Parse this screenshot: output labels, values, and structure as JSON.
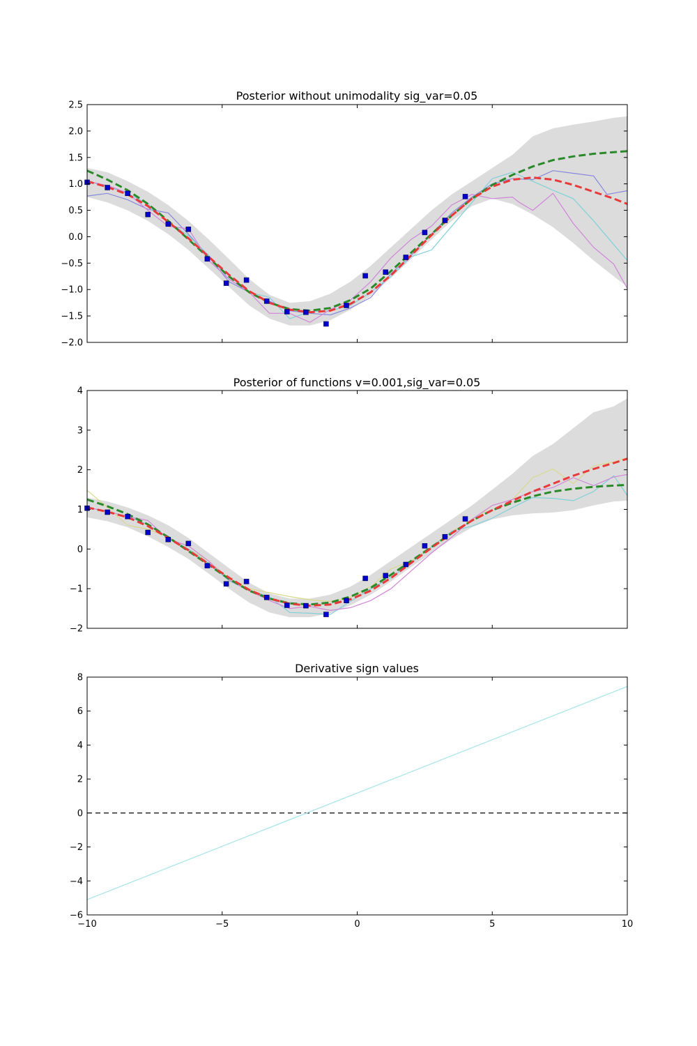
{
  "chart_data": [
    {
      "type": "line",
      "title": "Posterior without unimodality sig_var=0.05",
      "xlabel": "",
      "ylabel": "",
      "xlim": [
        -10,
        10
      ],
      "ylim": [
        -2.0,
        2.5
      ],
      "x_ticks": [
        -10,
        -5,
        0,
        5,
        10
      ],
      "x_tick_labels": [],
      "y_ticks": [
        -2.0,
        -1.5,
        -1.0,
        -0.5,
        0.0,
        0.5,
        1.0,
        1.5,
        2.0,
        2.5
      ],
      "y_tick_labels": [
        "−2.0",
        "−1.5",
        "−1.0",
        "−0.5",
        "0.0",
        "0.5",
        "1.0",
        "1.5",
        "2.0",
        "2.5"
      ],
      "grid": false,
      "band": {
        "color": "#dcdcdc",
        "x": [
          -10,
          -9.25,
          -8.5,
          -7.75,
          -7,
          -6.25,
          -5.5,
          -4.75,
          -4,
          -3.25,
          -2.5,
          -1.75,
          -1,
          -0.25,
          0.5,
          1.25,
          2,
          2.75,
          3.5,
          4.25,
          5,
          5.75,
          6.5,
          7.25,
          8,
          8.75,
          9.5,
          10
        ],
        "upper": [
          1.3,
          1.22,
          1.05,
          0.85,
          0.6,
          0.3,
          -0.05,
          -0.42,
          -0.8,
          -1.1,
          -1.25,
          -1.22,
          -1.08,
          -0.85,
          -0.55,
          -0.2,
          0.15,
          0.5,
          0.8,
          1.05,
          1.3,
          1.55,
          1.9,
          2.05,
          2.12,
          2.18,
          2.25,
          2.28
        ],
        "lower": [
          0.75,
          0.65,
          0.5,
          0.3,
          0.05,
          -0.25,
          -0.6,
          -0.95,
          -1.3,
          -1.55,
          -1.68,
          -1.68,
          -1.58,
          -1.38,
          -1.12,
          -0.78,
          -0.42,
          -0.05,
          0.3,
          0.58,
          0.72,
          0.62,
          0.42,
          0.18,
          -0.12,
          -0.45,
          -0.75,
          -0.95
        ]
      },
      "series": [
        {
          "color": "#8888dd",
          "dashed": false,
          "width": 1.2,
          "x": [
            -10,
            -9.25,
            -8.5,
            -7.75,
            -7,
            -6.25,
            -5.5,
            -4.75,
            -4,
            -3.25,
            -2.5,
            -1.75,
            -1,
            -0.25,
            0.5,
            1.25,
            2,
            2.75,
            3.5,
            4.25,
            5,
            5.75,
            6.5,
            7.25,
            8,
            8.75,
            9.25,
            10
          ],
          "y": [
            0.77,
            0.82,
            0.7,
            0.52,
            0.45,
            0.05,
            -0.38,
            -0.85,
            -1.05,
            -1.22,
            -1.4,
            -1.45,
            -1.48,
            -1.35,
            -1.15,
            -0.7,
            -0.35,
            0.05,
            0.45,
            0.75,
            1.0,
            1.1,
            1.08,
            1.25,
            1.2,
            1.15,
            0.8,
            0.87
          ]
        },
        {
          "color": "#7fd1d8",
          "dashed": false,
          "width": 1.2,
          "x": [
            -10,
            -9.25,
            -8.5,
            -7.75,
            -7,
            -6.25,
            -5.5,
            -4.75,
            -4,
            -3.25,
            -2.5,
            -1.75,
            -1,
            -0.25,
            0.5,
            1.25,
            2,
            2.75,
            3.5,
            4.25,
            5,
            5.75,
            6.5,
            7.25,
            8,
            8.75,
            9.5,
            10
          ],
          "y": [
            1.05,
            0.95,
            0.82,
            0.62,
            0.28,
            0.02,
            -0.35,
            -0.8,
            -1.05,
            -1.15,
            -1.55,
            -1.42,
            -1.4,
            -1.3,
            -1.05,
            -0.75,
            -0.38,
            -0.25,
            0.2,
            0.65,
            1.1,
            1.22,
            1.05,
            0.88,
            0.72,
            0.3,
            -0.15,
            -0.45
          ]
        },
        {
          "color": "#d085d8",
          "dashed": false,
          "width": 1.2,
          "x": [
            -10,
            -9.25,
            -8.5,
            -7.75,
            -7,
            -6.25,
            -5.5,
            -4.75,
            -4,
            -3.25,
            -2.5,
            -1.75,
            -1,
            -0.25,
            0.5,
            1.25,
            2,
            2.75,
            3.5,
            4.25,
            5,
            5.75,
            6,
            6.5,
            7.25,
            8,
            8.75,
            9.5,
            10
          ],
          "y": [
            1.05,
            0.97,
            0.83,
            0.5,
            0.2,
            0.15,
            -0.45,
            -0.8,
            -1.05,
            -1.45,
            -1.45,
            -1.62,
            -1.38,
            -1.2,
            -0.85,
            -0.4,
            -0.05,
            0.2,
            0.6,
            0.8,
            0.72,
            0.75,
            0.65,
            0.5,
            0.82,
            0.25,
            -0.2,
            -0.52,
            -0.98
          ]
        },
        {
          "color": "#2a8a2a",
          "dashed": true,
          "width": 3,
          "x": [
            -10,
            -9.25,
            -8.5,
            -7.75,
            -7,
            -6.25,
            -5.5,
            -4.75,
            -4,
            -3.25,
            -2.5,
            -1.75,
            -1,
            -0.25,
            0.5,
            1.25,
            2,
            2.75,
            3.5,
            4.25,
            5,
            5.75,
            6.5,
            7.25,
            8,
            8.75,
            9.5,
            10
          ],
          "y": [
            1.25,
            1.08,
            0.88,
            0.62,
            0.3,
            -0.05,
            -0.4,
            -0.75,
            -1.05,
            -1.25,
            -1.37,
            -1.4,
            -1.35,
            -1.2,
            -0.98,
            -0.65,
            -0.3,
            0.05,
            0.4,
            0.72,
            0.98,
            1.17,
            1.33,
            1.45,
            1.52,
            1.57,
            1.6,
            1.62
          ]
        },
        {
          "color": "#e83a3a",
          "dashed": true,
          "width": 3,
          "x": [
            -10,
            -9.25,
            -8.5,
            -7.75,
            -7,
            -6.25,
            -5.5,
            -4.75,
            -4,
            -3.25,
            -2.5,
            -1.75,
            -1,
            -0.25,
            0.5,
            1.25,
            2,
            2.75,
            3.5,
            4.25,
            5,
            5.75,
            6.5,
            7.25,
            8,
            8.75,
            9.5,
            10
          ],
          "y": [
            1.05,
            0.94,
            0.8,
            0.58,
            0.28,
            -0.03,
            -0.38,
            -0.72,
            -1.03,
            -1.25,
            -1.38,
            -1.43,
            -1.4,
            -1.27,
            -1.05,
            -0.73,
            -0.35,
            0.03,
            0.4,
            0.72,
            0.95,
            1.08,
            1.12,
            1.08,
            0.98,
            0.85,
            0.72,
            0.62
          ]
        }
      ],
      "scatter": {
        "color": "#0000cc",
        "x": [
          -10,
          -9.25,
          -8.5,
          -7.75,
          -7,
          -6.25,
          -5.55,
          -4.85,
          -4.1,
          -3.35,
          -2.6,
          -1.9,
          -1.15,
          -0.4,
          0.3,
          1.05,
          1.8,
          2.5,
          3.25,
          4.0
        ],
        "y": [
          1.03,
          0.93,
          0.82,
          0.42,
          0.24,
          0.14,
          -0.42,
          -0.88,
          -0.82,
          -1.22,
          -1.42,
          -1.43,
          -1.65,
          -1.3,
          -0.74,
          -0.67,
          -0.39,
          0.08,
          0.31,
          0.76
        ]
      }
    },
    {
      "type": "line",
      "title": "Posterior of functions v=0.001,sig_var=0.05",
      "xlabel": "",
      "ylabel": "",
      "xlim": [
        -10,
        10
      ],
      "ylim": [
        -2,
        4
      ],
      "x_ticks": [
        -10,
        -5,
        0,
        5,
        10
      ],
      "x_tick_labels": [],
      "y_ticks": [
        -2,
        -1,
        0,
        1,
        2,
        3,
        4
      ],
      "y_tick_labels": [
        "−2",
        "−1",
        "0",
        "1",
        "2",
        "3",
        "4"
      ],
      "grid": false,
      "band": {
        "color": "#dcdcdc",
        "x": [
          -10,
          -9.25,
          -8.5,
          -7.75,
          -7,
          -6.25,
          -5.5,
          -4.75,
          -4,
          -3.25,
          -2.5,
          -1.75,
          -1,
          -0.25,
          0.5,
          1.25,
          2,
          2.75,
          3.5,
          4.25,
          5,
          5.75,
          6.5,
          7.25,
          8,
          8.75,
          9.5,
          10
        ],
        "upper": [
          1.3,
          1.2,
          1.05,
          0.85,
          0.6,
          0.28,
          -0.1,
          -0.48,
          -0.85,
          -1.12,
          -1.25,
          -1.25,
          -1.15,
          -0.95,
          -0.65,
          -0.3,
          0.05,
          0.4,
          0.75,
          1.1,
          1.5,
          1.9,
          2.35,
          2.65,
          3.05,
          3.45,
          3.6,
          3.8
        ],
        "lower": [
          0.8,
          0.7,
          0.55,
          0.32,
          0.05,
          -0.25,
          -0.62,
          -1.0,
          -1.35,
          -1.6,
          -1.72,
          -1.72,
          -1.62,
          -1.42,
          -1.15,
          -0.82,
          -0.45,
          -0.1,
          0.25,
          0.55,
          0.75,
          0.85,
          0.9,
          0.92,
          0.98,
          1.1,
          1.2,
          1.22
        ]
      },
      "series": [
        {
          "color": "#d9d98a",
          "dashed": false,
          "width": 1.2,
          "x": [
            -10,
            -9.25,
            -8.5,
            -7.75,
            -7,
            -6.25,
            -5.5,
            -4.75,
            -4,
            -3.25,
            -2.5,
            -1.75,
            -1,
            -0.25,
            0.5,
            1.25,
            2,
            2.75,
            3.5,
            4.25,
            5,
            5.75,
            6.5,
            7.25,
            8,
            8.75,
            9.5,
            10
          ],
          "y": [
            1.48,
            1.05,
            0.6,
            0.5,
            0.3,
            0.0,
            -0.3,
            -0.75,
            -1.0,
            -1.1,
            -1.2,
            -1.28,
            -1.32,
            -1.22,
            -0.95,
            -0.5,
            -0.3,
            0.05,
            0.45,
            0.7,
            1.1,
            1.25,
            1.8,
            2.02,
            1.65,
            2.1,
            2.2,
            2.3
          ]
        },
        {
          "color": "#7fd1d8",
          "dashed": false,
          "width": 1.2,
          "x": [
            -10,
            -9.25,
            -8.5,
            -7.75,
            -7,
            -6.25,
            -5.5,
            -4.75,
            -4,
            -3.25,
            -2.5,
            -1.75,
            -1,
            -0.25,
            0.5,
            1.25,
            2,
            2.75,
            3.5,
            4.25,
            5,
            5.75,
            6.5,
            7.25,
            8,
            8.75,
            9.5,
            10
          ],
          "y": [
            1.05,
            0.95,
            0.82,
            0.62,
            0.28,
            0.0,
            -0.35,
            -0.8,
            -1.05,
            -1.2,
            -1.6,
            -1.62,
            -1.65,
            -1.32,
            -1.0,
            -0.72,
            -0.35,
            0.05,
            0.45,
            0.58,
            0.78,
            1.05,
            1.3,
            1.28,
            1.22,
            1.45,
            1.85,
            1.35
          ]
        },
        {
          "color": "#d085d8",
          "dashed": false,
          "width": 1.2,
          "x": [
            -10,
            -9.25,
            -8.5,
            -7.75,
            -7,
            -6.25,
            -5.5,
            -4.75,
            -4,
            -3.25,
            -2.5,
            -1.75,
            -1,
            -0.25,
            0.5,
            1.25,
            2,
            2.75,
            3.5,
            4.25,
            5,
            5.75,
            6.5,
            7.25,
            8,
            8.75,
            9.5,
            10
          ],
          "y": [
            1.05,
            0.95,
            0.82,
            0.72,
            0.25,
            0.08,
            -0.3,
            -0.78,
            -1.05,
            -1.3,
            -1.5,
            -1.45,
            -1.55,
            -1.48,
            -1.3,
            -1.0,
            -0.55,
            -0.1,
            0.3,
            0.75,
            1.1,
            1.25,
            1.45,
            1.55,
            1.8,
            1.6,
            1.82,
            1.88
          ]
        },
        {
          "color": "#2a8a2a",
          "dashed": true,
          "width": 3,
          "x": [
            -10,
            -9.25,
            -8.5,
            -7.75,
            -7,
            -6.25,
            -5.5,
            -4.75,
            -4,
            -3.25,
            -2.5,
            -1.75,
            -1,
            -0.25,
            0.5,
            1.25,
            2,
            2.75,
            3.5,
            4.25,
            5,
            5.75,
            6.5,
            7.25,
            8,
            8.75,
            9.5,
            10
          ],
          "y": [
            1.25,
            1.08,
            0.88,
            0.62,
            0.3,
            -0.05,
            -0.4,
            -0.75,
            -1.05,
            -1.25,
            -1.37,
            -1.4,
            -1.35,
            -1.2,
            -0.98,
            -0.65,
            -0.3,
            0.05,
            0.4,
            0.72,
            0.98,
            1.17,
            1.33,
            1.45,
            1.52,
            1.57,
            1.6,
            1.62
          ]
        },
        {
          "color": "#e83a3a",
          "dashed": true,
          "width": 3,
          "x": [
            -10,
            -9.25,
            -8.5,
            -7.75,
            -7,
            -6.25,
            -5.5,
            -4.75,
            -4,
            -3.25,
            -2.5,
            -1.75,
            -1,
            -0.25,
            0.5,
            1.25,
            2,
            2.75,
            3.5,
            4.25,
            5,
            5.75,
            6.5,
            7.25,
            8,
            8.75,
            9.5,
            10
          ],
          "y": [
            1.05,
            0.94,
            0.8,
            0.58,
            0.28,
            -0.03,
            -0.38,
            -0.72,
            -1.03,
            -1.25,
            -1.38,
            -1.43,
            -1.4,
            -1.27,
            -1.05,
            -0.73,
            -0.35,
            0.03,
            0.4,
            0.72,
            0.98,
            1.22,
            1.45,
            1.65,
            1.85,
            2.02,
            2.17,
            2.28
          ]
        }
      ],
      "scatter": {
        "color": "#0000cc",
        "x": [
          -10,
          -9.25,
          -8.5,
          -7.75,
          -7,
          -6.25,
          -5.55,
          -4.85,
          -4.1,
          -3.35,
          -2.6,
          -1.9,
          -1.15,
          -0.4,
          0.3,
          1.05,
          1.8,
          2.5,
          3.25,
          4.0
        ],
        "y": [
          1.03,
          0.93,
          0.82,
          0.42,
          0.24,
          0.14,
          -0.42,
          -0.88,
          -0.82,
          -1.22,
          -1.42,
          -1.43,
          -1.65,
          -1.3,
          -0.74,
          -0.67,
          -0.39,
          0.08,
          0.31,
          0.76
        ]
      }
    },
    {
      "type": "line",
      "title": "Derivative sign values",
      "xlabel": "",
      "ylabel": "",
      "xlim": [
        -10,
        10
      ],
      "ylim": [
        -6,
        8
      ],
      "x_ticks": [
        -10,
        -5,
        0,
        5,
        10
      ],
      "x_tick_labels": [
        "−10",
        "−5",
        "0",
        "5",
        "10"
      ],
      "y_ticks": [
        -6,
        -4,
        -2,
        0,
        2,
        4,
        6,
        8
      ],
      "y_tick_labels": [
        "−6",
        "−4",
        "−2",
        "0",
        "2",
        "4",
        "6",
        "8"
      ],
      "grid": false,
      "series": [
        {
          "color": "#000000",
          "dashed": true,
          "width": 1.2,
          "x": [
            -10,
            10
          ],
          "y": [
            0,
            0
          ]
        },
        {
          "color": "#a8e6ea",
          "dashed": false,
          "width": 1.3,
          "x": [
            -10,
            10
          ],
          "y": [
            -5.1,
            7.45
          ]
        }
      ]
    }
  ]
}
